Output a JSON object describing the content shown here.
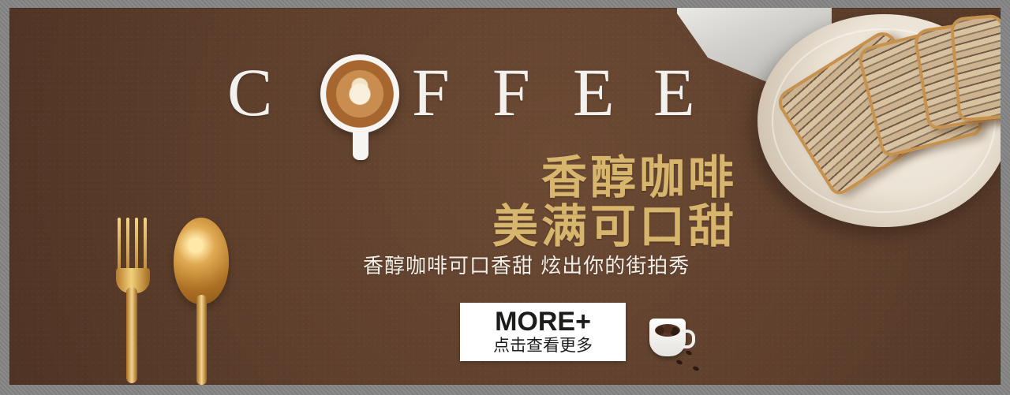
{
  "banner": {
    "logo": {
      "letters": [
        "C",
        "F",
        "F",
        "E",
        "E"
      ]
    },
    "headline": {
      "line_1": "香醇咖啡",
      "line_2": "美满可口甜"
    },
    "subtitle": "香醇咖啡可口香甜 炫出你的街拍秀",
    "button": {
      "title": "MORE+",
      "subtitle": "点击查看更多"
    }
  },
  "icons": {
    "logo_cup": "latte-cup-icon",
    "bean_cup": "coffee-bean-cup-icon",
    "fork": "gold-fork-icon",
    "spoon": "gold-spoon-icon"
  },
  "colors": {
    "background": "#5f402d",
    "headline": "#d7b56c",
    "logo": "#f3f1ee",
    "button": "#ffffff"
  }
}
